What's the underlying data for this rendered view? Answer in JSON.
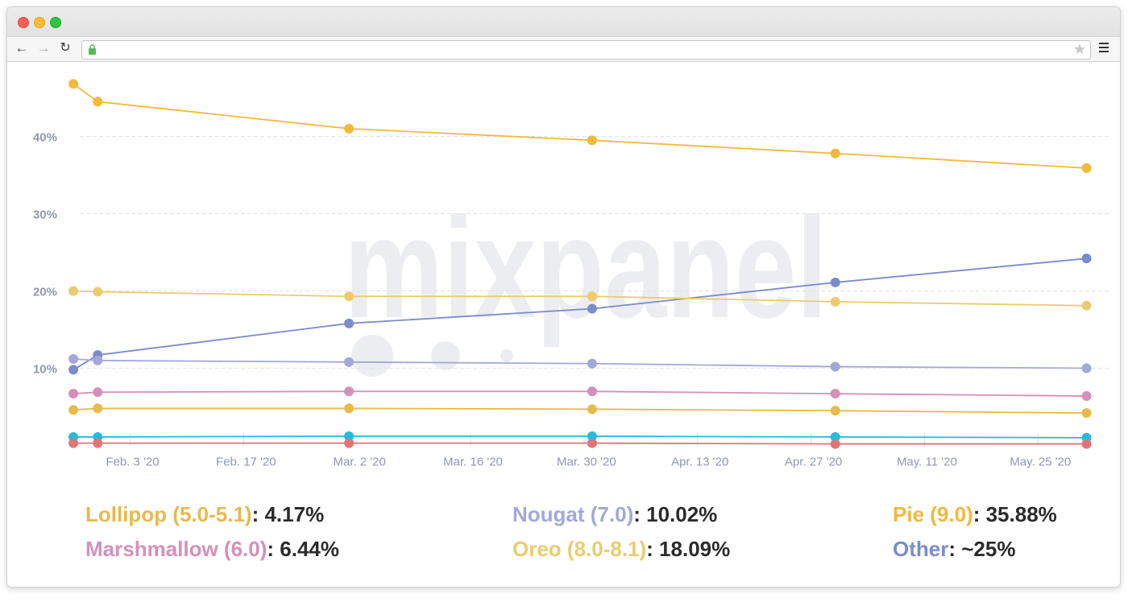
{
  "window": {
    "url": ""
  },
  "colors": {
    "lollipop": "#e9b949",
    "marshmallow": "#d68fba",
    "nougat": "#a3a8d8",
    "oreo": "#eccb6e",
    "pie": "#f2b93b",
    "other": "#7b8ccc",
    "cyan": "#22bce0",
    "red": "#e07575",
    "grid": "#e3e3e3",
    "ticktext": "#8f97b4",
    "watermark": "#ecedf0"
  },
  "watermark": "mixpanel",
  "legend": [
    {
      "name": "Lollipop (5.0-5.1)",
      "value": ": 4.17%",
      "color_key": "lollipop"
    },
    {
      "name": "Marshmallow (6.0)",
      "value": ": 6.44%",
      "color_key": "marshmallow"
    },
    {
      "name": "Nougat (7.0)",
      "value": ": 10.02%",
      "color_key": "nougat"
    },
    {
      "name": "Oreo (8.0-8.1)",
      "value": ": 18.09%",
      "color_key": "oreo"
    },
    {
      "name": "Pie (9.0)",
      "value": ": 35.88%",
      "color_key": "pie"
    },
    {
      "name": "Other",
      "value": ": ~25%",
      "color_key": "other"
    }
  ],
  "chart_data": {
    "type": "line",
    "x": [
      "2020-01-27",
      "2020-01-30",
      "2020-03-01",
      "2020-03-31",
      "2020-04-30",
      "2020-05-31"
    ],
    "x_ticks": [
      "Feb. 3 '20",
      "Feb. 17 '20",
      "Mar. 2 '20",
      "Mar. 16 '20",
      "Mar. 30 '20",
      "Apr. 13 '20",
      "Apr. 27 '20",
      "May. 11 '20",
      "May. 25 '20"
    ],
    "x_tick_dates": [
      "2020-02-03",
      "2020-02-17",
      "2020-03-02",
      "2020-03-16",
      "2020-03-30",
      "2020-04-13",
      "2020-04-27",
      "2020-05-11",
      "2020-05-25"
    ],
    "y_ticks": [
      "10%",
      "20%",
      "30%",
      "40%"
    ],
    "y_tick_values": [
      10,
      20,
      30,
      40
    ],
    "ylim": [
      0,
      48
    ],
    "ylabel": "",
    "xlabel": "",
    "grid": true,
    "series": [
      {
        "name": "Pie (9.0)",
        "color_key": "pie",
        "values": [
          46.8,
          44.5,
          41.0,
          39.5,
          37.8,
          35.9
        ]
      },
      {
        "name": "Other",
        "color_key": "other",
        "values": [
          9.8,
          11.7,
          15.8,
          17.7,
          21.1,
          24.2
        ]
      },
      {
        "name": "Oreo (8.0-8.1)",
        "color_key": "oreo",
        "values": [
          20.0,
          19.9,
          19.3,
          19.3,
          18.6,
          18.1
        ]
      },
      {
        "name": "Nougat (7.0)",
        "color_key": "nougat",
        "values": [
          11.2,
          11.0,
          10.8,
          10.6,
          10.2,
          10.0
        ]
      },
      {
        "name": "Marshmallow (6.0)",
        "color_key": "marshmallow",
        "values": [
          6.7,
          6.9,
          7.0,
          7.0,
          6.7,
          6.4
        ]
      },
      {
        "name": "Lollipop (5.0-5.1)",
        "color_key": "lollipop",
        "values": [
          4.6,
          4.8,
          4.8,
          4.7,
          4.5,
          4.2
        ]
      },
      {
        "color_key": "cyan",
        "values": [
          1.1,
          1.1,
          1.2,
          1.2,
          1.1,
          1.0
        ]
      },
      {
        "color_key": "red",
        "values": [
          0.3,
          0.3,
          0.3,
          0.3,
          0.2,
          0.2
        ]
      }
    ]
  }
}
